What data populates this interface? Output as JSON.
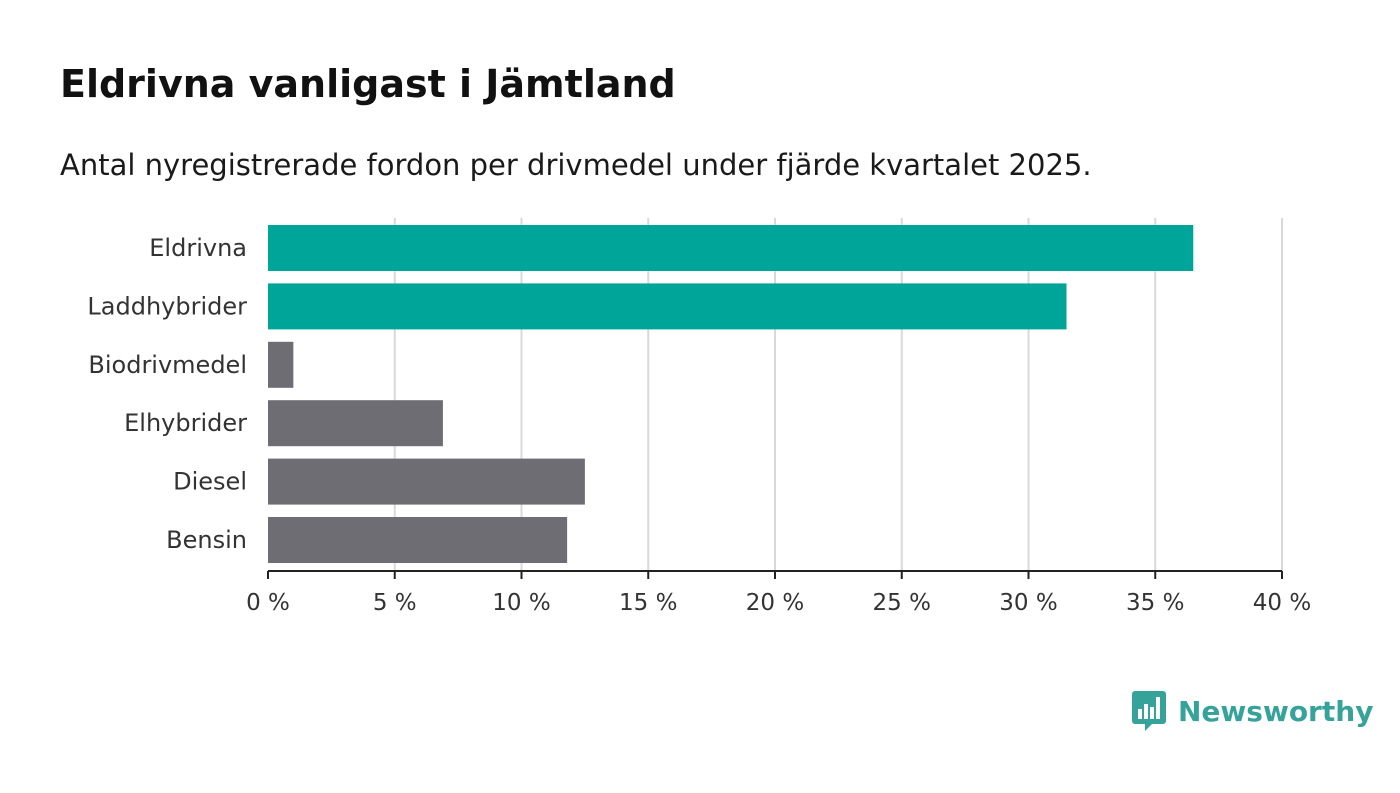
{
  "title": "Eldrivna vanligast i Jämtland",
  "subtitle": "Antal nyregistrerade fordon per drivmedel under fjärde kvartalet 2025.",
  "colors": {
    "highlight": "#00a599",
    "default": "#6e6d73",
    "grid": "#d9d9d9",
    "axis": "#222222",
    "brand": "#35a39a"
  },
  "chart_data": {
    "type": "bar",
    "orientation": "horizontal",
    "title": "Eldrivna vanligast i Jämtland",
    "subtitle": "Antal nyregistrerade fordon per drivmedel under fjärde kvartalet 2025.",
    "xlabel": "",
    "ylabel": "",
    "xlim": [
      0,
      40
    ],
    "grid": true,
    "categories": [
      "Eldrivna",
      "Laddhybrider",
      "Biodrivmedel",
      "Elhybrider",
      "Diesel",
      "Bensin"
    ],
    "values": [
      36.5,
      31.5,
      1.0,
      6.9,
      12.5,
      11.8
    ],
    "highlighted": [
      true,
      true,
      false,
      false,
      false,
      false
    ],
    "x_ticks": [
      0,
      5,
      10,
      15,
      20,
      25,
      30,
      35,
      40
    ],
    "x_tick_labels": [
      "0 %",
      "5 %",
      "10 %",
      "15 %",
      "20 %",
      "25 %",
      "30 %",
      "35 %",
      "40 %"
    ]
  },
  "logo": {
    "text": "Newsworthy",
    "icon": "bar-chart-bubble-icon"
  }
}
